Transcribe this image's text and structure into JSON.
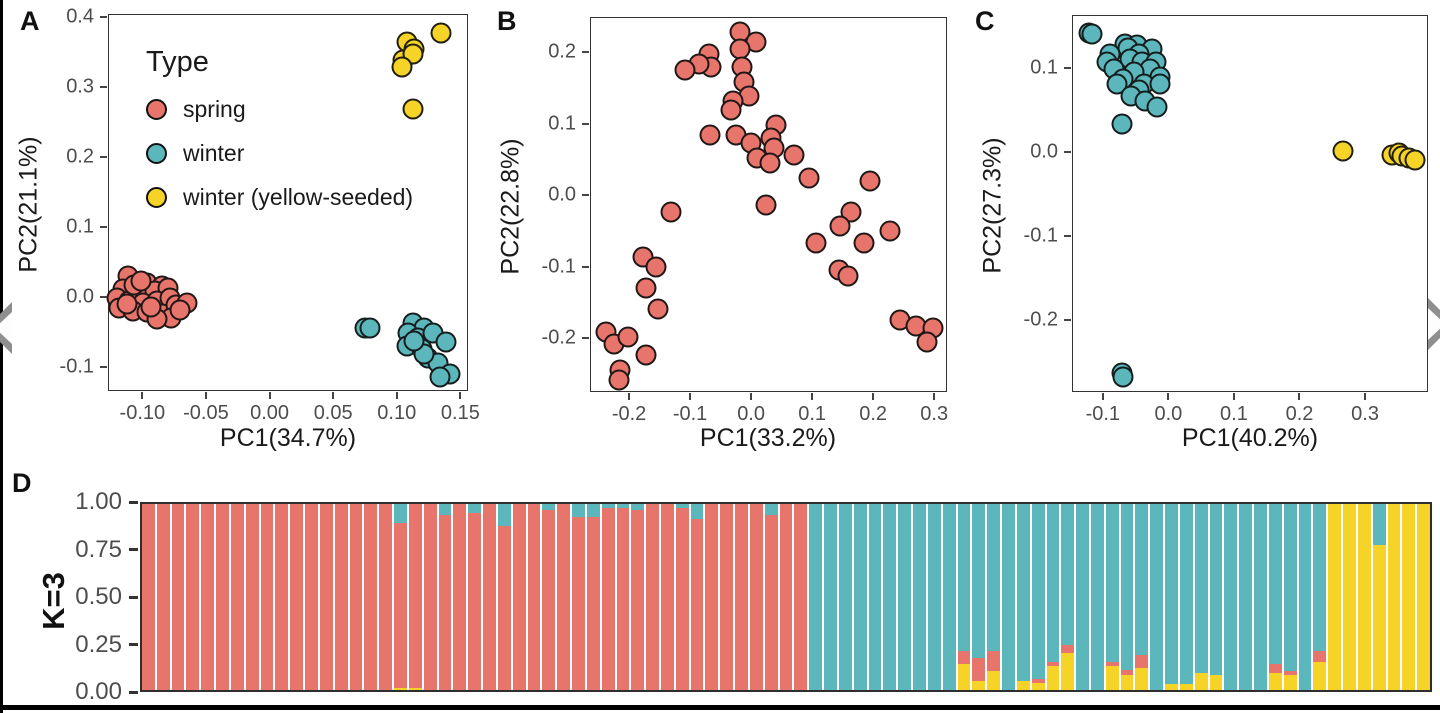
{
  "colors": {
    "spring": "#E8756B",
    "winter": "#5CB7BD",
    "yellow_seeded": "#F5D327",
    "point_stroke": "#1A1A1A",
    "axis_text": "#4D4D4D",
    "axis_title": "#1A1A1A",
    "frame": "#333333",
    "separator": "#FFFFFF",
    "nav_arrow": "#8F8F8F",
    "page_border": "#000000"
  },
  "nav": {
    "prev_icon": "chevron-left",
    "next_icon": "chevron-right"
  },
  "chart_data": [
    {
      "type": "scatter",
      "panel": "A",
      "xlabel": "PC1(34.7%)",
      "ylabel": "PC2(21.1%)",
      "xlim": [
        -0.127,
        0.156
      ],
      "ylim": [
        -0.135,
        0.405
      ],
      "grid": false,
      "xticks": {
        "labels": [
          "-0.10",
          "-0.05",
          "0.00",
          "0.05",
          "0.10",
          "0.15"
        ],
        "values": [
          -0.1,
          -0.05,
          0.0,
          0.05,
          0.1,
          0.15
        ]
      },
      "yticks": {
        "labels": [
          "-0.1",
          "0.0",
          "0.1",
          "0.2",
          "0.3",
          "0.4"
        ],
        "values": [
          -0.1,
          0.0,
          0.1,
          0.2,
          0.3,
          0.4
        ]
      },
      "legend": {
        "title": "Type",
        "position": "upper-left-inside",
        "items": [
          {
            "label": "spring",
            "color": "spring"
          },
          {
            "label": "winter",
            "color": "winter"
          },
          {
            "label": "winter (yellow-seeded)",
            "color": "yellow_seeded"
          }
        ]
      },
      "series": [
        {
          "name": "spring",
          "color": "spring",
          "points": [
            [
              -0.112,
              0.031
            ],
            [
              -0.097,
              0.021
            ],
            [
              -0.085,
              0.017
            ],
            [
              -0.116,
              0.013
            ],
            [
              -0.103,
              0.006
            ],
            [
              -0.091,
              0.01
            ],
            [
              -0.081,
              0.014
            ],
            [
              -0.121,
              0.0
            ],
            [
              -0.111,
              -0.004
            ],
            [
              -0.1,
              -0.007
            ],
            [
              -0.089,
              -0.004
            ],
            [
              -0.079,
              -0.001
            ],
            [
              -0.119,
              -0.014
            ],
            [
              -0.108,
              -0.019
            ],
            [
              -0.097,
              -0.021
            ],
            [
              -0.085,
              -0.023
            ],
            [
              -0.074,
              -0.011
            ],
            [
              -0.066,
              -0.007
            ],
            [
              -0.078,
              -0.029
            ],
            [
              -0.089,
              -0.03
            ],
            [
              -0.107,
              0.018
            ],
            [
              -0.094,
              -0.013
            ],
            [
              -0.113,
              -0.009
            ],
            [
              -0.102,
              0.024
            ],
            [
              -0.071,
              -0.018
            ]
          ]
        },
        {
          "name": "winter",
          "color": "winter",
          "points": [
            [
              0.074,
              -0.043
            ],
            [
              0.078,
              -0.044
            ],
            [
              0.112,
              -0.036
            ],
            [
              0.121,
              -0.043
            ],
            [
              0.108,
              -0.051
            ],
            [
              0.116,
              -0.057
            ],
            [
              0.128,
              -0.05
            ],
            [
              0.107,
              -0.069
            ],
            [
              0.119,
              -0.073
            ],
            [
              0.138,
              -0.064
            ],
            [
              0.124,
              -0.086
            ],
            [
              0.132,
              -0.093
            ],
            [
              0.141,
              -0.109
            ],
            [
              0.133,
              -0.114
            ],
            [
              0.121,
              -0.08
            ],
            [
              0.113,
              -0.062
            ]
          ]
        },
        {
          "name": "winter (yellow-seeded)",
          "color": "yellow_seeded",
          "points": [
            [
              0.107,
              0.367
            ],
            [
              0.113,
              0.356
            ],
            [
              0.104,
              0.341
            ],
            [
              0.112,
              0.349
            ],
            [
              0.103,
              0.331
            ],
            [
              0.134,
              0.379
            ],
            [
              0.112,
              0.27
            ]
          ]
        }
      ]
    },
    {
      "type": "scatter",
      "panel": "B",
      "xlabel": "PC1(33.2%)",
      "ylabel": "PC2(22.8%)",
      "xlim": [
        -0.264,
        0.321
      ],
      "ylim": [
        -0.275,
        0.249
      ],
      "grid": false,
      "xticks": {
        "labels": [
          "-0.2",
          "-0.1",
          "0.0",
          "0.1",
          "0.2",
          "0.3"
        ],
        "values": [
          -0.2,
          -0.1,
          0.0,
          0.1,
          0.2,
          0.3
        ]
      },
      "yticks": {
        "labels": [
          "-0.2",
          "-0.1",
          "0.0",
          "0.1",
          "0.2"
        ],
        "values": [
          -0.2,
          -0.1,
          0.0,
          0.1,
          0.2
        ]
      },
      "series": [
        {
          "name": "spring",
          "color": "spring",
          "points": [
            [
              -0.02,
              0.23
            ],
            [
              0.006,
              0.215
            ],
            [
              -0.02,
              0.205
            ],
            [
              -0.07,
              0.198
            ],
            [
              -0.068,
              0.181
            ],
            [
              -0.087,
              0.185
            ],
            [
              -0.11,
              0.176
            ],
            [
              -0.017,
              0.181
            ],
            [
              -0.013,
              0.16
            ],
            [
              -0.005,
              0.14
            ],
            [
              -0.032,
              0.133
            ],
            [
              -0.035,
              0.12
            ],
            [
              0.039,
              0.1
            ],
            [
              -0.069,
              0.086
            ],
            [
              -0.027,
              0.086
            ],
            [
              -0.001,
              0.075
            ],
            [
              0.031,
              0.082
            ],
            [
              0.036,
              0.068
            ],
            [
              0.008,
              0.053
            ],
            [
              0.03,
              0.046
            ],
            [
              0.069,
              0.057
            ],
            [
              0.093,
              0.026
            ],
            [
              0.193,
              0.021
            ],
            [
              0.022,
              -0.012
            ],
            [
              -0.133,
              -0.022
            ],
            [
              0.162,
              -0.022
            ],
            [
              0.144,
              -0.041
            ],
            [
              0.226,
              -0.049
            ],
            [
              0.104,
              -0.065
            ],
            [
              0.183,
              -0.065
            ],
            [
              0.143,
              -0.103
            ],
            [
              0.157,
              -0.112
            ],
            [
              -0.178,
              -0.085
            ],
            [
              -0.158,
              -0.099
            ],
            [
              -0.174,
              -0.128
            ],
            [
              -0.155,
              -0.157
            ],
            [
              -0.24,
              -0.19
            ],
            [
              -0.227,
              -0.207
            ],
            [
              -0.204,
              -0.197
            ],
            [
              -0.174,
              -0.222
            ],
            [
              -0.216,
              -0.243
            ],
            [
              -0.218,
              -0.257
            ],
            [
              0.243,
              -0.173
            ],
            [
              0.268,
              -0.181
            ],
            [
              0.297,
              -0.184
            ],
            [
              0.287,
              -0.204
            ]
          ]
        }
      ]
    },
    {
      "type": "scatter",
      "panel": "C",
      "xlabel": "PC1(40.2%)",
      "ylabel": "PC2(27.3%)",
      "xlim": [
        -0.147,
        0.396
      ],
      "ylim": [
        -0.286,
        0.163
      ],
      "grid": false,
      "xticks": {
        "labels": [
          "-0.1",
          "0.0",
          "0.1",
          "0.2",
          "0.3"
        ],
        "values": [
          -0.1,
          0.0,
          0.1,
          0.2,
          0.3
        ]
      },
      "yticks": {
        "labels": [
          "-0.2",
          "-0.1",
          "0.0",
          "0.1"
        ],
        "values": [
          -0.2,
          -0.1,
          0.0,
          0.1
        ]
      },
      "series": [
        {
          "name": "winter",
          "color": "winter",
          "points": [
            [
              -0.122,
              0.143
            ],
            [
              -0.118,
              0.141
            ],
            [
              -0.067,
              0.13
            ],
            [
              -0.05,
              0.128
            ],
            [
              -0.063,
              0.125
            ],
            [
              -0.026,
              0.124
            ],
            [
              -0.09,
              0.118
            ],
            [
              -0.047,
              0.118
            ],
            [
              -0.06,
              0.112
            ],
            [
              -0.095,
              0.108
            ],
            [
              -0.042,
              0.108
            ],
            [
              -0.021,
              0.108
            ],
            [
              -0.085,
              0.1
            ],
            [
              -0.03,
              0.1
            ],
            [
              -0.054,
              0.096
            ],
            [
              -0.014,
              0.09
            ],
            [
              -0.07,
              0.088
            ],
            [
              -0.039,
              0.082
            ],
            [
              -0.08,
              0.082
            ],
            [
              -0.014,
              0.082
            ],
            [
              -0.046,
              0.075
            ],
            [
              -0.059,
              0.068
            ],
            [
              -0.037,
              0.062
            ],
            [
              -0.019,
              0.055
            ],
            [
              -0.073,
              0.034
            ],
            [
              -0.073,
              -0.262
            ],
            [
              -0.07,
              -0.267
            ]
          ]
        },
        {
          "name": "winter (yellow-seeded)",
          "color": "yellow_seeded",
          "points": [
            [
              0.265,
              0.002
            ],
            [
              0.34,
              -0.002
            ],
            [
              0.35,
              0.0
            ],
            [
              0.355,
              -0.004
            ],
            [
              0.365,
              -0.006
            ],
            [
              0.375,
              -0.008
            ]
          ]
        }
      ]
    },
    {
      "type": "stacked_bar",
      "panel": "D",
      "ylabel": "K=3",
      "ylim": [
        0,
        1
      ],
      "yticks": {
        "labels": [
          "1.00",
          "0.75",
          "0.50",
          "0.25",
          "0.00"
        ],
        "values": [
          1.0,
          0.75,
          0.5,
          0.25,
          0.0
        ]
      },
      "stack_order_bottom_to_top": [
        "yellow_seeded",
        "spring",
        "winter"
      ],
      "bar_triplet_meaning": [
        "spring",
        "winter",
        "yellow_seeded"
      ],
      "bars": [
        [
          1,
          0,
          0
        ],
        [
          1,
          0,
          0
        ],
        [
          1,
          0,
          0
        ],
        [
          1,
          0,
          0
        ],
        [
          1,
          0,
          0
        ],
        [
          1,
          0,
          0
        ],
        [
          1,
          0,
          0
        ],
        [
          1,
          0,
          0
        ],
        [
          1,
          0,
          0
        ],
        [
          1,
          0,
          0
        ],
        [
          1,
          0,
          0
        ],
        [
          1,
          0,
          0
        ],
        [
          1,
          0,
          0
        ],
        [
          1,
          0,
          0
        ],
        [
          1,
          0,
          0
        ],
        [
          1,
          0,
          0
        ],
        [
          1,
          0,
          0
        ],
        [
          0.89,
          0.1,
          0.01
        ],
        [
          0.99,
          0,
          0.01
        ],
        [
          1,
          0,
          0
        ],
        [
          0.94,
          0.06,
          0
        ],
        [
          1,
          0,
          0
        ],
        [
          0.95,
          0.05,
          0
        ],
        [
          1,
          0,
          0
        ],
        [
          0.88,
          0.12,
          0
        ],
        [
          1,
          0,
          0
        ],
        [
          1,
          0,
          0
        ],
        [
          0.97,
          0.03,
          0
        ],
        [
          1,
          0,
          0
        ],
        [
          0.93,
          0.07,
          0
        ],
        [
          0.93,
          0.07,
          0
        ],
        [
          0.98,
          0.02,
          0
        ],
        [
          0.98,
          0.02,
          0
        ],
        [
          0.97,
          0.03,
          0
        ],
        [
          1,
          0,
          0
        ],
        [
          1,
          0,
          0
        ],
        [
          0.98,
          0.02,
          0
        ],
        [
          0.92,
          0.08,
          0
        ],
        [
          1,
          0,
          0
        ],
        [
          1,
          0,
          0
        ],
        [
          1,
          0,
          0
        ],
        [
          1,
          0,
          0
        ],
        [
          0.94,
          0.06,
          0
        ],
        [
          1,
          0,
          0
        ],
        [
          1,
          0,
          0
        ],
        [
          0,
          1,
          0
        ],
        [
          0,
          1,
          0
        ],
        [
          0,
          1,
          0
        ],
        [
          0,
          1,
          0
        ],
        [
          0,
          1,
          0
        ],
        [
          0,
          1,
          0
        ],
        [
          0,
          1,
          0
        ],
        [
          0,
          1,
          0
        ],
        [
          0,
          1,
          0
        ],
        [
          0,
          1,
          0
        ],
        [
          0.07,
          0.79,
          0.14
        ],
        [
          0.12,
          0.83,
          0.05
        ],
        [
          0.11,
          0.79,
          0.1
        ],
        [
          0,
          1,
          0
        ],
        [
          0,
          0.95,
          0.05
        ],
        [
          0.02,
          0.94,
          0.04
        ],
        [
          0.02,
          0.85,
          0.13
        ],
        [
          0.04,
          0.76,
          0.2
        ],
        [
          0,
          1,
          0
        ],
        [
          0,
          1,
          0
        ],
        [
          0.02,
          0.85,
          0.13
        ],
        [
          0.03,
          0.89,
          0.08
        ],
        [
          0.07,
          0.81,
          0.12
        ],
        [
          0,
          1,
          0
        ],
        [
          0,
          0.97,
          0.03
        ],
        [
          0,
          0.97,
          0.03
        ],
        [
          0,
          0.91,
          0.09
        ],
        [
          0,
          0.92,
          0.08
        ],
        [
          0,
          1,
          0
        ],
        [
          0,
          1,
          0
        ],
        [
          0,
          1,
          0
        ],
        [
          0.05,
          0.86,
          0.09
        ],
        [
          0.02,
          0.9,
          0.08
        ],
        [
          0,
          1,
          0
        ],
        [
          0.06,
          0.79,
          0.15
        ],
        [
          0,
          0,
          1
        ],
        [
          0,
          0,
          1
        ],
        [
          0,
          0,
          1
        ],
        [
          0,
          0.22,
          0.78
        ],
        [
          0,
          0,
          1
        ],
        [
          0,
          0,
          1
        ],
        [
          0,
          0,
          1
        ]
      ]
    }
  ]
}
